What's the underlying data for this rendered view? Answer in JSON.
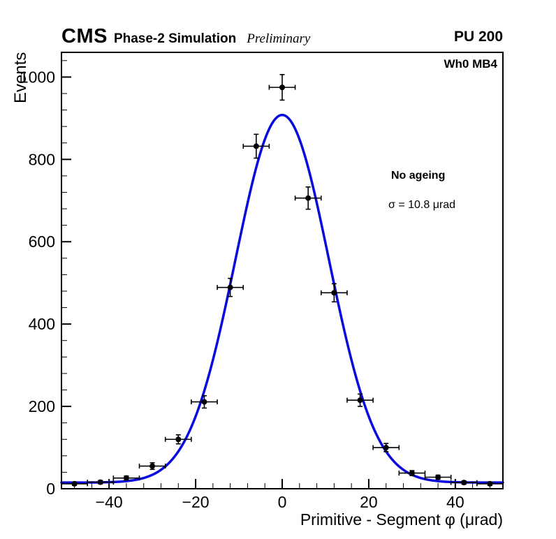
{
  "header": {
    "experiment": "CMS",
    "subtitle": "Phase-2 Simulation",
    "preliminary": "Preliminary",
    "pileup": "PU 200"
  },
  "annotations": {
    "chamber": "Wh0 MB4",
    "scenario": "No ageing",
    "sigma": "σ = 10.8 μrad"
  },
  "chart_data": {
    "type": "scatter",
    "title": "",
    "xlabel": "Primitive - Segment φ (μrad)",
    "ylabel": "Events",
    "xlim": [
      -51,
      51
    ],
    "ylim": [
      0,
      1060
    ],
    "xticks": [
      -40,
      -20,
      0,
      20,
      40
    ],
    "yticks": [
      0,
      200,
      400,
      600,
      800,
      1000
    ],
    "x_minor_step": 4,
    "y_minor_step": 40,
    "grid": false,
    "legend": "none",
    "marker_color": "#000000",
    "points": [
      {
        "x": -48,
        "y": 12,
        "ex": 3,
        "ey": 4
      },
      {
        "x": -42,
        "y": 16,
        "ex": 3,
        "ey": 4
      },
      {
        "x": -36,
        "y": 26,
        "ex": 3,
        "ey": 5
      },
      {
        "x": -30,
        "y": 55,
        "ex": 3,
        "ey": 8
      },
      {
        "x": -24,
        "y": 120,
        "ex": 3,
        "ey": 11
      },
      {
        "x": -18,
        "y": 211,
        "ex": 3,
        "ey": 15
      },
      {
        "x": -12,
        "y": 489,
        "ex": 3,
        "ey": 22
      },
      {
        "x": -6,
        "y": 832,
        "ex": 3,
        "ey": 29
      },
      {
        "x": 0,
        "y": 975,
        "ex": 3,
        "ey": 31
      },
      {
        "x": 6,
        "y": 706,
        "ex": 3,
        "ey": 27
      },
      {
        "x": 12,
        "y": 476,
        "ex": 3,
        "ey": 22
      },
      {
        "x": 18,
        "y": 215,
        "ex": 3,
        "ey": 15
      },
      {
        "x": 24,
        "y": 100,
        "ex": 3,
        "ey": 10
      },
      {
        "x": 30,
        "y": 38,
        "ex": 3,
        "ey": 6
      },
      {
        "x": 36,
        "y": 28,
        "ex": 3,
        "ey": 5
      },
      {
        "x": 42,
        "y": 15,
        "ex": 3,
        "ey": 4
      },
      {
        "x": 48,
        "y": 12,
        "ex": 3,
        "ey": 4
      }
    ],
    "fit": {
      "shape": "gaussian",
      "amplitude": 893,
      "mean": 0,
      "sigma": 10.8,
      "offset": 15,
      "color": "#0909dd",
      "line_width": 3.5
    }
  }
}
